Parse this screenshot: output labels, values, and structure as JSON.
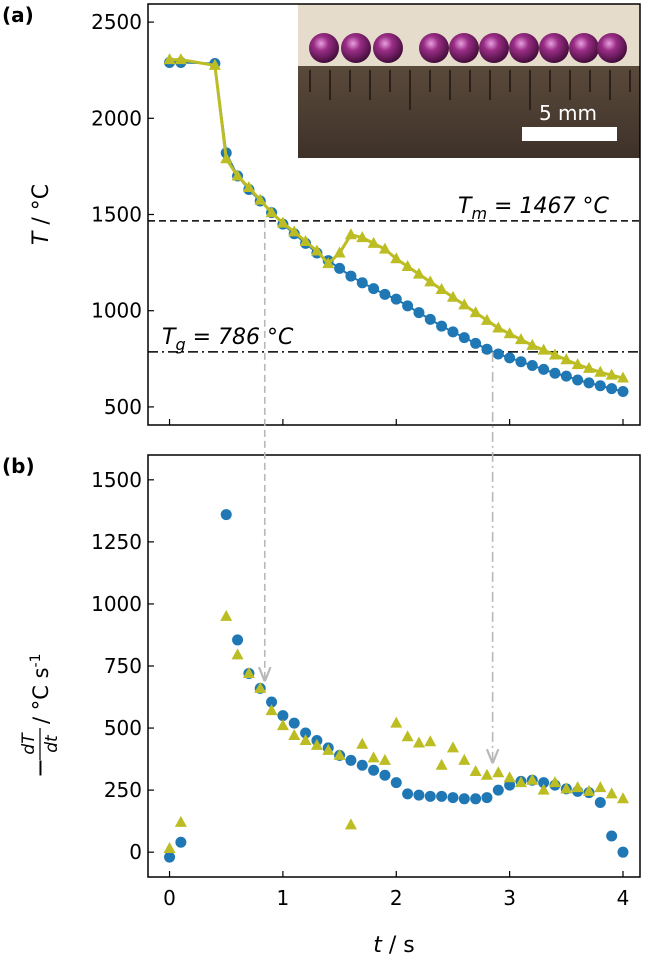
{
  "chart_data": [
    {
      "type": "line",
      "panel_label": "(a)",
      "ylabel": {
        "symbol": "T",
        "unit": " / °C"
      },
      "inset_label": "5 mm",
      "x": [
        0,
        0.1,
        0.4,
        0.5,
        0.6,
        0.7,
        0.8,
        0.9,
        1.0,
        1.1,
        1.2,
        1.3,
        1.4,
        1.5,
        1.6,
        1.7,
        1.8,
        1.9,
        2.0,
        2.1,
        2.2,
        2.3,
        2.4,
        2.5,
        2.6,
        2.7,
        2.8,
        2.9,
        3.0,
        3.1,
        3.2,
        3.3,
        3.4,
        3.5,
        3.6,
        3.7,
        3.8,
        3.9,
        4.0
      ],
      "series": [
        {
          "color": "#1f77b4",
          "marker": "circle",
          "values": [
            2290,
            2290,
            2285,
            1820,
            1700,
            1630,
            1570,
            1510,
            1450,
            1400,
            1350,
            1300,
            1260,
            1220,
            1180,
            1145,
            1115,
            1085,
            1060,
            1025,
            990,
            955,
            920,
            890,
            860,
            830,
            800,
            775,
            755,
            735,
            715,
            695,
            675,
            660,
            640,
            625,
            610,
            595,
            580
          ]
        },
        {
          "color": "#bcbd22",
          "marker": "triangle",
          "values": [
            2305,
            2305,
            2275,
            1790,
            1700,
            1640,
            1575,
            1510,
            1455,
            1410,
            1360,
            1310,
            1245,
            1300,
            1395,
            1380,
            1350,
            1320,
            1270,
            1230,
            1190,
            1150,
            1110,
            1070,
            1030,
            990,
            950,
            910,
            880,
            850,
            820,
            795,
            770,
            745,
            720,
            700,
            680,
            665,
            650
          ]
        }
      ],
      "hlines": [
        {
          "value": 1467,
          "style": "dashed",
          "symbol": "T",
          "subscript": "m",
          "text": " = 1467 °C"
        },
        {
          "value": 786,
          "style": "dashdot",
          "symbol": "T",
          "subscript": "g",
          "text": " = 786 °C"
        }
      ],
      "arrows": [
        {
          "x": 0.84,
          "style": "dashed",
          "from": 0
        },
        {
          "x": 2.85,
          "style": "dashdot",
          "from": 1
        }
      ],
      "xlim": [
        -0.19,
        4.15
      ],
      "xticks": [
        0,
        1,
        2,
        3,
        4
      ],
      "ylim": [
        406,
        2594
      ],
      "yticks": [
        500,
        1000,
        1500,
        2000,
        2500
      ]
    },
    {
      "type": "scatter",
      "panel_label": "(b)",
      "ylabel": {
        "prefix": "−",
        "numerator": "dT",
        "denominator": "dt",
        "unit": " / °C s",
        "superscript": "-1"
      },
      "xlabel": {
        "symbol": "t",
        "unit": " / s"
      },
      "x": [
        0,
        0.1,
        0.5,
        0.6,
        0.7,
        0.8,
        0.9,
        1.0,
        1.1,
        1.2,
        1.3,
        1.4,
        1.5,
        1.6,
        1.7,
        1.8,
        1.9,
        2.0,
        2.1,
        2.2,
        2.3,
        2.4,
        2.5,
        2.6,
        2.7,
        2.8,
        2.9,
        3.0,
        3.1,
        3.2,
        3.3,
        3.4,
        3.5,
        3.6,
        3.7,
        3.8,
        3.9,
        4.0
      ],
      "series": [
        {
          "color": "#1f77b4",
          "marker": "circle",
          "values": [
            -20,
            40,
            1360,
            855,
            720,
            660,
            605,
            550,
            520,
            480,
            450,
            420,
            390,
            370,
            350,
            330,
            310,
            280,
            235,
            230,
            225,
            225,
            220,
            215,
            215,
            220,
            250,
            270,
            285,
            290,
            280,
            270,
            255,
            245,
            240,
            200,
            65,
            0
          ]
        },
        {
          "color": "#bcbd22",
          "marker": "triangle",
          "values": [
            15,
            120,
            950,
            795,
            720,
            660,
            570,
            510,
            470,
            450,
            430,
            410,
            390,
            110,
            435,
            380,
            370,
            520,
            465,
            440,
            445,
            350,
            420,
            370,
            325,
            310,
            320,
            300,
            280,
            290,
            250,
            280,
            255,
            260,
            245,
            260,
            235,
            215
          ]
        }
      ],
      "xlim": [
        -0.19,
        4.15
      ],
      "xticks": [
        0,
        1,
        2,
        3,
        4
      ],
      "ylim": [
        -100,
        1600
      ],
      "yticks": [
        0,
        250,
        500,
        750,
        1000,
        1250,
        1500
      ]
    }
  ]
}
